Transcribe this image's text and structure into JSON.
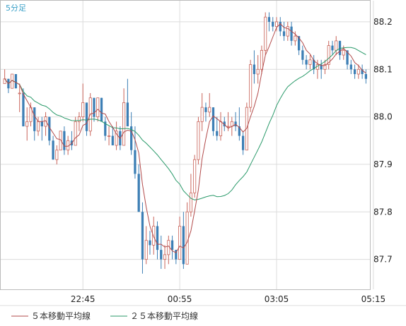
{
  "chart_data": {
    "type": "candlestick",
    "timeframe_label": "5分足",
    "x_ticks": [
      "22:45",
      "00:55",
      "03:05",
      "05:15"
    ],
    "x_tick_index": [
      21,
      47,
      73,
      99
    ],
    "y_ticks": [
      87.7,
      87.8,
      87.9,
      88.0,
      88.1,
      88.2
    ],
    "ylim": [
      87.64,
      88.24
    ],
    "grid": true,
    "legend_position": "bottom-left",
    "legend": [
      {
        "name": "５本移動平均線",
        "color": "#b24a4a"
      },
      {
        "name": "２５本移動平均線",
        "color": "#2a9a6a"
      }
    ],
    "colors": {
      "up": "#c9645a",
      "down": "#3d7fb5",
      "ma5": "#b24a4a",
      "ma25": "#2a9a6a",
      "grid": "#dcdcdc",
      "axis": "#bbbbbb",
      "timeframe": "#3aa0c8"
    },
    "candles": [
      [
        88.07,
        88.1,
        88.07,
        88.08
      ],
      [
        88.08,
        88.08,
        88.05,
        88.06
      ],
      [
        88.06,
        88.09,
        88.06,
        88.09
      ],
      [
        88.09,
        88.09,
        88.06,
        88.06
      ],
      [
        88.05,
        88.07,
        88.01,
        88.05
      ],
      [
        88.05,
        88.06,
        87.98,
        87.98
      ],
      [
        87.98,
        88.02,
        87.95,
        87.99
      ],
      [
        87.99,
        88.03,
        87.98,
        88.02
      ],
      [
        88.02,
        88.02,
        87.95,
        87.97
      ],
      [
        87.97,
        88.0,
        87.96,
        87.99
      ],
      [
        87.99,
        88.0,
        87.95,
        87.98
      ],
      [
        87.98,
        88.01,
        87.96,
        88.0
      ],
      [
        88.0,
        88.0,
        87.94,
        87.95
      ],
      [
        87.95,
        87.96,
        87.91,
        87.91
      ],
      [
        87.91,
        87.94,
        87.9,
        87.93
      ],
      [
        87.93,
        87.97,
        87.93,
        87.97
      ],
      [
        87.97,
        87.98,
        87.92,
        87.93
      ],
      [
        87.93,
        87.96,
        87.92,
        87.95
      ],
      [
        87.95,
        87.97,
        87.93,
        87.94
      ],
      [
        87.94,
        88.0,
        87.94,
        87.99
      ],
      [
        87.99,
        88.01,
        87.97,
        88.0
      ],
      [
        88.0,
        88.07,
        87.99,
        88.03
      ],
      [
        88.03,
        88.03,
        87.96,
        87.97
      ],
      [
        87.97,
        88.05,
        87.96,
        88.04
      ],
      [
        88.04,
        88.04,
        87.99,
        88.0
      ],
      [
        88.0,
        88.04,
        87.99,
        88.04
      ],
      [
        88.04,
        88.04,
        87.99,
        87.99
      ],
      [
        87.99,
        88.0,
        87.95,
        87.96
      ],
      [
        87.96,
        87.98,
        87.94,
        87.96
      ],
      [
        87.96,
        87.98,
        87.94,
        87.94
      ],
      [
        87.94,
        87.99,
        87.93,
        87.97
      ],
      [
        87.97,
        87.98,
        87.93,
        87.94
      ],
      [
        87.94,
        88.06,
        87.94,
        88.03
      ],
      [
        88.03,
        88.08,
        87.98,
        87.98
      ],
      [
        87.98,
        88.01,
        87.92,
        87.93
      ],
      [
        87.93,
        87.98,
        87.87,
        87.88
      ],
      [
        87.88,
        87.9,
        87.8,
        87.8
      ],
      [
        87.8,
        87.82,
        87.67,
        87.7
      ],
      [
        87.7,
        87.77,
        87.69,
        87.74
      ],
      [
        87.74,
        87.76,
        87.71,
        87.73
      ],
      [
        87.73,
        87.79,
        87.71,
        87.77
      ],
      [
        87.77,
        87.78,
        87.7,
        87.72
      ],
      [
        87.72,
        87.75,
        87.68,
        87.7
      ],
      [
        87.7,
        87.73,
        87.68,
        87.71
      ],
      [
        87.71,
        87.75,
        87.69,
        87.74
      ],
      [
        87.74,
        87.75,
        87.7,
        87.72
      ],
      [
        87.72,
        87.72,
        87.69,
        87.7
      ],
      [
        87.7,
        87.79,
        87.7,
        87.77
      ],
      [
        87.77,
        87.8,
        87.68,
        87.69
      ],
      [
        87.69,
        87.82,
        87.69,
        87.8
      ],
      [
        87.8,
        87.88,
        87.79,
        87.84
      ],
      [
        87.84,
        87.92,
        87.83,
        87.91
      ],
      [
        87.91,
        88.0,
        87.9,
        87.99
      ],
      [
        87.99,
        88.05,
        87.97,
        88.02
      ],
      [
        88.02,
        88.03,
        87.99,
        88.01
      ],
      [
        88.01,
        88.05,
        88.0,
        88.02
      ],
      [
        88.02,
        88.02,
        87.96,
        87.97
      ],
      [
        87.97,
        88.0,
        87.95,
        87.96
      ],
      [
        87.96,
        88.01,
        87.95,
        87.99
      ],
      [
        87.99,
        88.0,
        87.97,
        87.98
      ],
      [
        87.98,
        88.01,
        87.97,
        87.98
      ],
      [
        87.98,
        88.0,
        87.96,
        87.99
      ],
      [
        87.99,
        88.01,
        87.97,
        87.98
      ],
      [
        87.98,
        88.02,
        87.95,
        87.96
      ],
      [
        87.96,
        87.97,
        87.92,
        87.93
      ],
      [
        87.93,
        88.03,
        87.93,
        88.02
      ],
      [
        88.02,
        88.12,
        88.01,
        88.11
      ],
      [
        88.11,
        88.14,
        88.07,
        88.09
      ],
      [
        88.09,
        88.13,
        88.07,
        88.1
      ],
      [
        88.1,
        88.15,
        88.09,
        88.14
      ],
      [
        88.14,
        88.22,
        88.13,
        88.21
      ],
      [
        88.21,
        88.22,
        88.18,
        88.2
      ],
      [
        88.2,
        88.21,
        88.18,
        88.19
      ],
      [
        88.19,
        88.21,
        88.18,
        88.2
      ],
      [
        88.2,
        88.21,
        88.17,
        88.18
      ],
      [
        88.18,
        88.2,
        88.16,
        88.17
      ],
      [
        88.17,
        88.2,
        88.16,
        88.19
      ],
      [
        88.19,
        88.2,
        88.15,
        88.16
      ],
      [
        88.16,
        88.18,
        88.15,
        88.17
      ],
      [
        88.17,
        88.17,
        88.13,
        88.14
      ],
      [
        88.14,
        88.15,
        88.11,
        88.12
      ],
      [
        88.12,
        88.13,
        88.1,
        88.11
      ],
      [
        88.11,
        88.13,
        88.1,
        88.12
      ],
      [
        88.12,
        88.13,
        88.09,
        88.1
      ],
      [
        88.1,
        88.12,
        88.08,
        88.11
      ],
      [
        88.11,
        88.12,
        88.08,
        88.1
      ],
      [
        88.1,
        88.12,
        88.09,
        88.11
      ],
      [
        88.11,
        88.16,
        88.1,
        88.15
      ],
      [
        88.15,
        88.16,
        88.13,
        88.14
      ],
      [
        88.14,
        88.17,
        88.13,
        88.16
      ],
      [
        88.16,
        88.16,
        88.12,
        88.13
      ],
      [
        88.13,
        88.15,
        88.12,
        88.14
      ],
      [
        88.14,
        88.14,
        88.1,
        88.11
      ],
      [
        88.11,
        88.12,
        88.09,
        88.1
      ],
      [
        88.1,
        88.11,
        88.08,
        88.09
      ],
      [
        88.09,
        88.11,
        88.08,
        88.1
      ],
      [
        88.1,
        88.11,
        88.08,
        88.09
      ],
      [
        88.09,
        88.1,
        88.07,
        88.08
      ]
    ]
  }
}
